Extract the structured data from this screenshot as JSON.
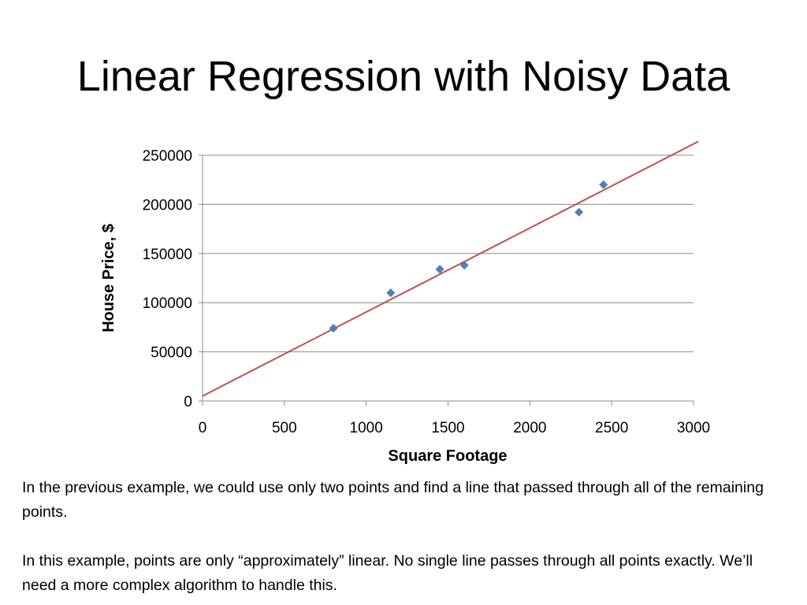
{
  "slide": {
    "title": "Linear Regression with Noisy Data",
    "paragraph_1": "In the previous example, we could use only two points and find a line that passed through all of the remaining points.",
    "paragraph_2": "In this example, points are only “approximately” linear.  No single line passes through all points exactly.  We’ll need a more complex algorithm to handle this."
  },
  "chart_data": {
    "type": "scatter",
    "xlabel": "Square Footage",
    "ylabel": "House Price, $",
    "xlim": [
      0,
      3000
    ],
    "ylim": [
      0,
      250000
    ],
    "x_ticks": [
      0,
      500,
      1000,
      1500,
      2000,
      2500,
      3000
    ],
    "y_ticks": [
      0,
      50000,
      100000,
      150000,
      200000,
      250000
    ],
    "x_tick_labels": [
      "0",
      "500",
      "1000",
      "1500",
      "2000",
      "2500",
      "3000"
    ],
    "y_tick_labels": [
      "0",
      "50000",
      "100000",
      "150000",
      "200000",
      "250000"
    ],
    "grid": "horizontal",
    "legend": "none",
    "series": [
      {
        "x": [
          800,
          1150,
          1450,
          1600,
          2300,
          2450
        ],
        "y": [
          74000,
          110000,
          134000,
          138000,
          192000,
          220000
        ],
        "color": "#4f81bd",
        "marker": "diamond"
      }
    ],
    "fit_line": {
      "x": [
        0,
        3030
      ],
      "y": [
        5000,
        264000
      ],
      "color": "#c0504d"
    }
  }
}
